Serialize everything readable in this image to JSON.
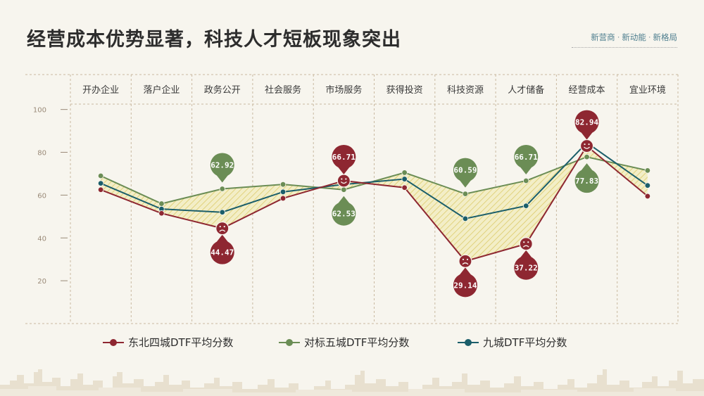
{
  "title": "经营成本优势显著，科技人才短板现象突出",
  "tags": [
    "新营商",
    "新动能",
    "新格局"
  ],
  "colors": {
    "series1": "#8e2731",
    "series2": "#6b8d55",
    "series3": "#1b5e6a",
    "hatch": "#e4d98a",
    "grid": "#c9b9a0",
    "axis_text": "#9a8a78"
  },
  "chart_data": {
    "type": "line",
    "categories": [
      "开办企业",
      "落户企业",
      "政务公开",
      "社会服务",
      "市场服务",
      "获得投资",
      "科技资源",
      "人才储备",
      "经营成本",
      "宜业环境"
    ],
    "ylim": [
      0,
      115
    ],
    "yticks": [
      20,
      40,
      60,
      80,
      100
    ],
    "series": [
      {
        "name": "东北四城DTF平均分数",
        "values": [
          62.5,
          51.5,
          44.47,
          58.5,
          66.71,
          63.5,
          29.14,
          37.22,
          82.94,
          59.5
        ]
      },
      {
        "name": "对标五城DTF平均分数",
        "values": [
          69.0,
          56.0,
          62.92,
          65.0,
          62.53,
          70.5,
          60.59,
          66.71,
          77.83,
          71.5
        ]
      },
      {
        "name": "九城DTF平均分数",
        "values": [
          65.5,
          53.5,
          52.0,
          61.5,
          65.0,
          67.5,
          49.0,
          55.0,
          84.5,
          64.5
        ]
      }
    ],
    "callouts": [
      {
        "category_index": 2,
        "series_index": 0,
        "label": "44.47",
        "mood": "sad"
      },
      {
        "category_index": 2,
        "series_index": 1,
        "label": "62.92"
      },
      {
        "category_index": 4,
        "series_index": 0,
        "label": "66.71",
        "mood": "happy"
      },
      {
        "category_index": 4,
        "series_index": 1,
        "label": "62.53"
      },
      {
        "category_index": 6,
        "series_index": 0,
        "label": "29.14",
        "mood": "sad"
      },
      {
        "category_index": 6,
        "series_index": 1,
        "label": "60.59"
      },
      {
        "category_index": 7,
        "series_index": 0,
        "label": "37.22",
        "mood": "sad"
      },
      {
        "category_index": 7,
        "series_index": 1,
        "label": "66.71"
      },
      {
        "category_index": 8,
        "series_index": 0,
        "label": "82.94",
        "mood": "happy"
      },
      {
        "category_index": 8,
        "series_index": 1,
        "label": "77.83"
      }
    ]
  }
}
